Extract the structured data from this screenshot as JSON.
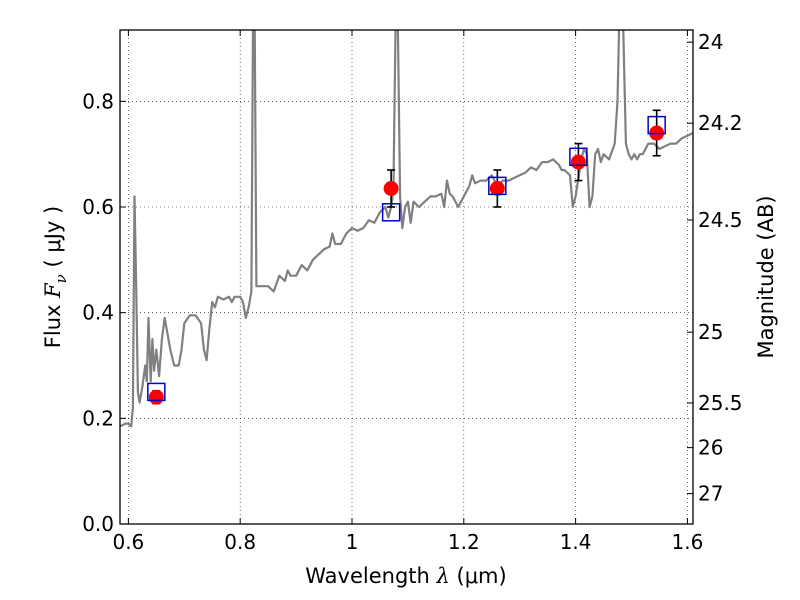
{
  "chart_data": {
    "type": "scatter",
    "xlabel": {
      "prefix": "Wavelength  ",
      "symbol": "λ",
      "units": " (μm)"
    },
    "ylabel": {
      "prefix": "Flux  ",
      "symbol": "F",
      "subscript": "ν",
      "units": "  ( μJy )"
    },
    "y2label": "Magnitude (AB)",
    "xlim": [
      0.585,
      1.61
    ],
    "ylim": [
      0.0,
      0.935
    ],
    "grid": true,
    "x_ticks": [
      {
        "value": 0.6,
        "label": "0.6"
      },
      {
        "value": 0.8,
        "label": "0.8"
      },
      {
        "value": 1.0,
        "label": "1"
      },
      {
        "value": 1.2,
        "label": "1.2"
      },
      {
        "value": 1.4,
        "label": "1.4"
      },
      {
        "value": 1.6,
        "label": "1.6"
      }
    ],
    "y_ticks": [
      {
        "value": 0.0,
        "label": "0.0"
      },
      {
        "value": 0.2,
        "label": "0.2"
      },
      {
        "value": 0.4,
        "label": "0.4"
      },
      {
        "value": 0.6,
        "label": "0.6"
      },
      {
        "value": 0.8,
        "label": "0.8"
      }
    ],
    "mag_ticks": [
      {
        "mag": 24.0,
        "label": "24"
      },
      {
        "mag": 24.2,
        "label": "24.2"
      },
      {
        "mag": 24.5,
        "label": "24.5"
      },
      {
        "mag": 25.0,
        "label": "25"
      },
      {
        "mag": 25.5,
        "label": "25.5"
      },
      {
        "mag": 26.0,
        "label": "26"
      },
      {
        "mag": 27.0,
        "label": "27"
      }
    ],
    "observed": [
      {
        "x": 0.65,
        "y": 0.24,
        "err": 0.012
      },
      {
        "x": 1.07,
        "y": 0.635,
        "err": 0.035
      },
      {
        "x": 1.26,
        "y": 0.635,
        "err": 0.035
      },
      {
        "x": 1.405,
        "y": 0.685,
        "err": 0.035
      },
      {
        "x": 1.545,
        "y": 0.74,
        "err": 0.043
      }
    ],
    "model_photometry": [
      {
        "x": 0.65,
        "y": 0.25
      },
      {
        "x": 1.07,
        "y": 0.59
      },
      {
        "x": 1.26,
        "y": 0.64
      },
      {
        "x": 1.405,
        "y": 0.695
      },
      {
        "x": 1.545,
        "y": 0.755
      }
    ],
    "spectrum": [
      [
        0.585,
        0.185
      ],
      [
        0.595,
        0.19
      ],
      [
        0.6,
        0.19
      ],
      [
        0.605,
        0.185
      ],
      [
        0.608,
        0.22
      ],
      [
        0.611,
        0.62
      ],
      [
        0.614,
        0.45
      ],
      [
        0.617,
        0.25
      ],
      [
        0.62,
        0.23
      ],
      [
        0.625,
        0.26
      ],
      [
        0.63,
        0.3
      ],
      [
        0.633,
        0.27
      ],
      [
        0.636,
        0.39
      ],
      [
        0.64,
        0.27
      ],
      [
        0.643,
        0.35
      ],
      [
        0.646,
        0.29
      ],
      [
        0.65,
        0.33
      ],
      [
        0.655,
        0.28
      ],
      [
        0.66,
        0.35
      ],
      [
        0.665,
        0.39
      ],
      [
        0.67,
        0.36
      ],
      [
        0.675,
        0.33
      ],
      [
        0.682,
        0.3
      ],
      [
        0.69,
        0.3
      ],
      [
        0.695,
        0.33
      ],
      [
        0.7,
        0.38
      ],
      [
        0.71,
        0.395
      ],
      [
        0.72,
        0.395
      ],
      [
        0.73,
        0.38
      ],
      [
        0.735,
        0.33
      ],
      [
        0.74,
        0.31
      ],
      [
        0.745,
        0.37
      ],
      [
        0.75,
        0.42
      ],
      [
        0.755,
        0.41
      ],
      [
        0.76,
        0.43
      ],
      [
        0.77,
        0.425
      ],
      [
        0.78,
        0.43
      ],
      [
        0.785,
        0.42
      ],
      [
        0.79,
        0.43
      ],
      [
        0.8,
        0.43
      ],
      [
        0.805,
        0.42
      ],
      [
        0.81,
        0.39
      ],
      [
        0.815,
        0.41
      ],
      [
        0.82,
        0.44
      ],
      [
        0.823,
        0.95
      ],
      [
        0.826,
        0.95
      ],
      [
        0.829,
        0.45
      ],
      [
        0.835,
        0.45
      ],
      [
        0.85,
        0.45
      ],
      [
        0.86,
        0.44
      ],
      [
        0.87,
        0.47
      ],
      [
        0.88,
        0.46
      ],
      [
        0.885,
        0.48
      ],
      [
        0.89,
        0.47
      ],
      [
        0.9,
        0.47
      ],
      [
        0.91,
        0.49
      ],
      [
        0.92,
        0.48
      ],
      [
        0.93,
        0.5
      ],
      [
        0.94,
        0.51
      ],
      [
        0.95,
        0.52
      ],
      [
        0.96,
        0.525
      ],
      [
        0.965,
        0.55
      ],
      [
        0.97,
        0.53
      ],
      [
        0.98,
        0.53
      ],
      [
        0.99,
        0.55
      ],
      [
        1.0,
        0.56
      ],
      [
        1.01,
        0.555
      ],
      [
        1.02,
        0.56
      ],
      [
        1.03,
        0.575
      ],
      [
        1.04,
        0.57
      ],
      [
        1.05,
        0.59
      ],
      [
        1.06,
        0.6
      ],
      [
        1.065,
        0.58
      ],
      [
        1.07,
        0.6
      ],
      [
        1.074,
        0.63
      ],
      [
        1.078,
        0.95
      ],
      [
        1.082,
        0.95
      ],
      [
        1.086,
        0.62
      ],
      [
        1.09,
        0.56
      ],
      [
        1.095,
        0.6
      ],
      [
        1.1,
        0.61
      ],
      [
        1.105,
        0.57
      ],
      [
        1.11,
        0.61
      ],
      [
        1.12,
        0.6
      ],
      [
        1.13,
        0.61
      ],
      [
        1.14,
        0.62
      ],
      [
        1.15,
        0.62
      ],
      [
        1.16,
        0.625
      ],
      [
        1.165,
        0.6
      ],
      [
        1.17,
        0.65
      ],
      [
        1.175,
        0.625
      ],
      [
        1.18,
        0.62
      ],
      [
        1.19,
        0.6
      ],
      [
        1.2,
        0.62
      ],
      [
        1.21,
        0.64
      ],
      [
        1.215,
        0.66
      ],
      [
        1.22,
        0.645
      ],
      [
        1.23,
        0.65
      ],
      [
        1.24,
        0.65
      ],
      [
        1.25,
        0.66
      ],
      [
        1.26,
        0.64
      ],
      [
        1.27,
        0.65
      ],
      [
        1.28,
        0.65
      ],
      [
        1.3,
        0.66
      ],
      [
        1.31,
        0.665
      ],
      [
        1.32,
        0.675
      ],
      [
        1.33,
        0.67
      ],
      [
        1.34,
        0.685
      ],
      [
        1.35,
        0.685
      ],
      [
        1.36,
        0.69
      ],
      [
        1.37,
        0.68
      ],
      [
        1.375,
        0.67
      ],
      [
        1.38,
        0.67
      ],
      [
        1.39,
        0.66
      ],
      [
        1.395,
        0.6
      ],
      [
        1.4,
        0.62
      ],
      [
        1.41,
        0.69
      ],
      [
        1.415,
        0.71
      ],
      [
        1.42,
        0.7
      ],
      [
        1.425,
        0.6
      ],
      [
        1.43,
        0.62
      ],
      [
        1.435,
        0.7
      ],
      [
        1.44,
        0.71
      ],
      [
        1.445,
        0.685
      ],
      [
        1.45,
        0.7
      ],
      [
        1.46,
        0.69
      ],
      [
        1.47,
        0.72
      ],
      [
        1.475,
        0.8
      ],
      [
        1.478,
        0.95
      ],
      [
        1.485,
        0.95
      ],
      [
        1.49,
        0.72
      ],
      [
        1.495,
        0.7
      ],
      [
        1.5,
        0.69
      ],
      [
        1.505,
        0.7
      ],
      [
        1.51,
        0.69
      ],
      [
        1.515,
        0.7
      ],
      [
        1.52,
        0.7
      ],
      [
        1.53,
        0.72
      ],
      [
        1.54,
        0.72
      ],
      [
        1.55,
        0.71
      ],
      [
        1.56,
        0.715
      ],
      [
        1.57,
        0.72
      ],
      [
        1.58,
        0.72
      ],
      [
        1.59,
        0.73
      ],
      [
        1.6,
        0.735
      ],
      [
        1.61,
        0.74
      ]
    ],
    "colors": {
      "spectrum": "#808080",
      "observed_marker": "#ff0000",
      "model_marker": "#0000cc",
      "errorbar": "#000000",
      "grid": "#000000"
    }
  }
}
